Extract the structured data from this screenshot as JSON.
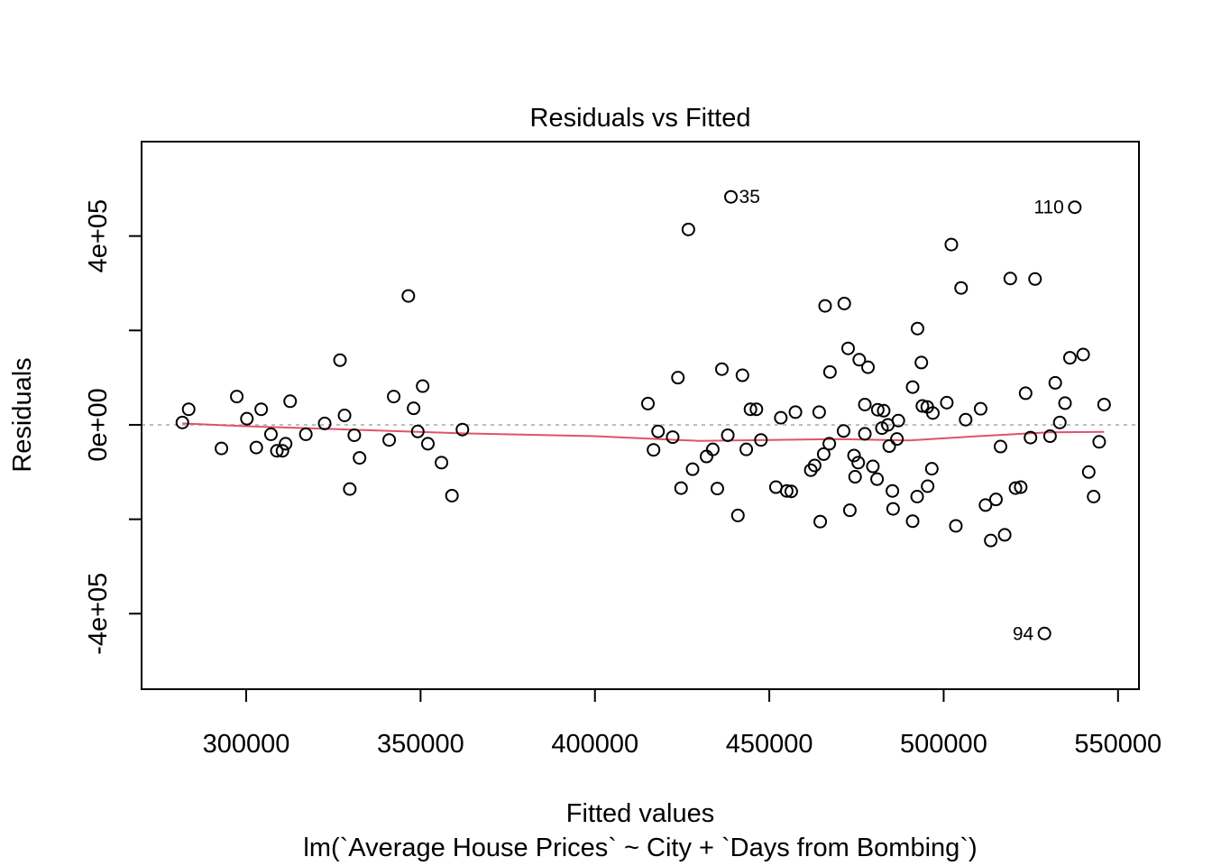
{
  "chart_data": {
    "type": "scatter",
    "title": "Residuals vs Fitted",
    "xlabel": "Fitted values",
    "subtitle": "lm(`Average House Prices` ~ City + `Days from Bombing`)",
    "ylabel": "Residuals",
    "xlim": [
      270000,
      556000
    ],
    "ylim": [
      -560000,
      600000
    ],
    "x_ticks": [
      300000,
      350000,
      400000,
      450000,
      500000,
      550000
    ],
    "x_tick_labels": [
      "300000",
      "350000",
      "400000",
      "450000",
      "500000",
      "550000"
    ],
    "y_ticks": [
      -400000,
      -200000,
      0,
      200000,
      400000
    ],
    "y_tick_labels": [
      "-4e+05",
      "",
      "0e+00",
      "",
      "4e+05"
    ],
    "reference_line_y": 0,
    "grid": false,
    "colors": {
      "points": "#000000",
      "smooth": "#DF536B",
      "reference": "#BEBEBE"
    },
    "points": [
      [
        281700,
        5000
      ],
      [
        283500,
        33000
      ],
      [
        292900,
        -50000
      ],
      [
        297300,
        60000
      ],
      [
        300200,
        13000
      ],
      [
        302900,
        -48000
      ],
      [
        304300,
        33000
      ],
      [
        307100,
        -20000
      ],
      [
        308800,
        -55000
      ],
      [
        310400,
        -55000
      ],
      [
        311300,
        -40000
      ],
      [
        312600,
        50000
      ],
      [
        317100,
        -20000
      ],
      [
        322500,
        3000
      ],
      [
        326900,
        137000
      ],
      [
        328200,
        20000
      ],
      [
        329700,
        -136000
      ],
      [
        331000,
        -22000
      ],
      [
        332500,
        -70000
      ],
      [
        341000,
        -32000
      ],
      [
        342300,
        60000
      ],
      [
        346500,
        273000
      ],
      [
        348000,
        35000
      ],
      [
        349200,
        -14000
      ],
      [
        350600,
        82000
      ],
      [
        352100,
        -40000
      ],
      [
        356000,
        -80000
      ],
      [
        359000,
        -150000
      ],
      [
        362000,
        -10000
      ],
      [
        415200,
        45000
      ],
      [
        416800,
        -53000
      ],
      [
        418100,
        -14000
      ],
      [
        422300,
        -26000
      ],
      [
        423800,
        100000
      ],
      [
        424700,
        -134000
      ],
      [
        426800,
        414000
      ],
      [
        428000,
        -94000
      ],
      [
        432000,
        -67000
      ],
      [
        433800,
        -52000
      ],
      [
        435100,
        -135000
      ],
      [
        436400,
        118000
      ],
      [
        438100,
        -22000
      ],
      [
        439000,
        483000
      ],
      [
        441000,
        -192000
      ],
      [
        442300,
        105000
      ],
      [
        443400,
        -52000
      ],
      [
        444600,
        33000
      ],
      [
        446300,
        33000
      ],
      [
        447600,
        -32000
      ],
      [
        451900,
        -132000
      ],
      [
        453300,
        15000
      ],
      [
        455000,
        -140000
      ],
      [
        456300,
        -141000
      ],
      [
        457500,
        27000
      ],
      [
        461900,
        -96000
      ],
      [
        463000,
        -86000
      ],
      [
        464300,
        27000
      ],
      [
        464600,
        -205000
      ],
      [
        465600,
        -62000
      ],
      [
        466000,
        252000
      ],
      [
        467200,
        -40000
      ],
      [
        467400,
        112000
      ],
      [
        471300,
        -13000
      ],
      [
        471500,
        257000
      ],
      [
        472600,
        162000
      ],
      [
        473100,
        -181000
      ],
      [
        474300,
        -65000
      ],
      [
        474600,
        -110000
      ],
      [
        475500,
        -80000
      ],
      [
        475800,
        138000
      ],
      [
        477400,
        43000
      ],
      [
        477400,
        -19000
      ],
      [
        478300,
        122000
      ],
      [
        479700,
        -88000
      ],
      [
        480900,
        -115000
      ],
      [
        481100,
        32000
      ],
      [
        482300,
        -7000
      ],
      [
        482800,
        30000
      ],
      [
        484000,
        0
      ],
      [
        484400,
        -45000
      ],
      [
        485300,
        -140000
      ],
      [
        485500,
        -178000
      ],
      [
        486600,
        -30000
      ],
      [
        487000,
        9000
      ],
      [
        491100,
        80000
      ],
      [
        491100,
        -204000
      ],
      [
        492400,
        -152000
      ],
      [
        492500,
        204000
      ],
      [
        493600,
        132000
      ],
      [
        493900,
        40000
      ],
      [
        495300,
        38000
      ],
      [
        495400,
        -130000
      ],
      [
        496600,
        -93000
      ],
      [
        496900,
        25000
      ],
      [
        500900,
        47000
      ],
      [
        502200,
        382000
      ],
      [
        503500,
        -214000
      ],
      [
        505000,
        290000
      ],
      [
        506300,
        11000
      ],
      [
        510600,
        34000
      ],
      [
        512000,
        -170000
      ],
      [
        513500,
        -245000
      ],
      [
        515000,
        -158000
      ],
      [
        516300,
        -46000
      ],
      [
        517500,
        -233000
      ],
      [
        519100,
        310000
      ],
      [
        520600,
        -134000
      ],
      [
        522100,
        -132000
      ],
      [
        523500,
        67000
      ],
      [
        524900,
        -27000
      ],
      [
        526200,
        309000
      ],
      [
        528900,
        -442000
      ],
      [
        530500,
        -24000
      ],
      [
        532000,
        89000
      ],
      [
        533300,
        5000
      ],
      [
        534800,
        46000
      ],
      [
        536200,
        142000
      ],
      [
        537600,
        461000
      ],
      [
        540000,
        149000
      ],
      [
        541600,
        -100000
      ],
      [
        543000,
        -152000
      ],
      [
        544600,
        -36000
      ],
      [
        546000,
        43000
      ]
    ],
    "labeled_points": [
      {
        "label": "35",
        "x": 439000,
        "y": 483000,
        "side": "right"
      },
      {
        "label": "110",
        "x": 537600,
        "y": 461000,
        "side": "left"
      },
      {
        "label": "94",
        "x": 528900,
        "y": -442000,
        "side": "left"
      }
    ],
    "smooth_line": [
      [
        281700,
        3000
      ],
      [
        300000,
        -3000
      ],
      [
        330000,
        -10000
      ],
      [
        362000,
        -18000
      ],
      [
        400000,
        -24000
      ],
      [
        430000,
        -34000
      ],
      [
        450000,
        -32000
      ],
      [
        470000,
        -30000
      ],
      [
        490000,
        -33000
      ],
      [
        510000,
        -24000
      ],
      [
        530000,
        -16000
      ],
      [
        546000,
        -15000
      ]
    ]
  }
}
